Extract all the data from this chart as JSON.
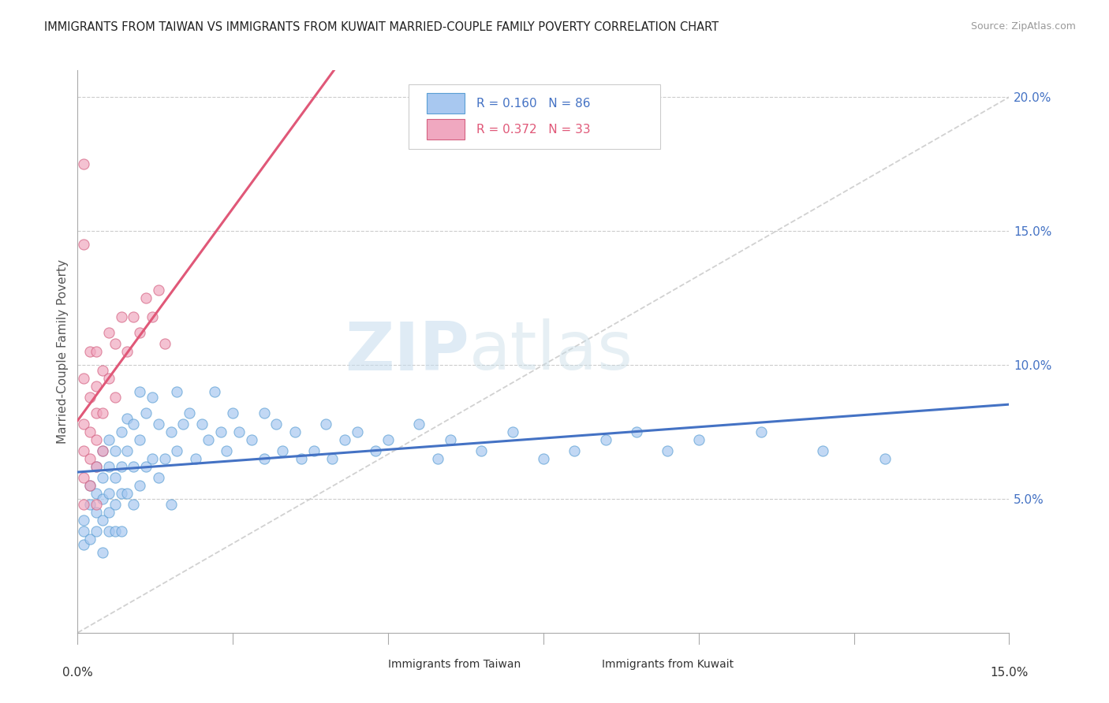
{
  "title": "IMMIGRANTS FROM TAIWAN VS IMMIGRANTS FROM KUWAIT MARRIED-COUPLE FAMILY POVERTY CORRELATION CHART",
  "source": "Source: ZipAtlas.com",
  "ylabel": "Married-Couple Family Poverty",
  "xlim": [
    0.0,
    0.15
  ],
  "ylim": [
    0.0,
    0.21
  ],
  "taiwan_color": "#a8c8f0",
  "taiwan_edge": "#5a9fd4",
  "kuwait_color": "#f0a8c0",
  "kuwait_edge": "#d46080",
  "taiwan_line_color": "#4472c4",
  "kuwait_line_color": "#e05878",
  "diag_line_color": "#cccccc",
  "watermark_zip": "ZIP",
  "watermark_atlas": "atlas",
  "right_yticks": [
    "20.0%",
    "15.0%",
    "10.0%",
    "5.0%"
  ],
  "right_ytick_vals": [
    0.2,
    0.15,
    0.1,
    0.05
  ],
  "taiwan_x": [
    0.001,
    0.001,
    0.001,
    0.002,
    0.002,
    0.002,
    0.003,
    0.003,
    0.003,
    0.003,
    0.004,
    0.004,
    0.004,
    0.004,
    0.004,
    0.005,
    0.005,
    0.005,
    0.005,
    0.005,
    0.006,
    0.006,
    0.006,
    0.006,
    0.007,
    0.007,
    0.007,
    0.007,
    0.008,
    0.008,
    0.008,
    0.009,
    0.009,
    0.009,
    0.01,
    0.01,
    0.01,
    0.011,
    0.011,
    0.012,
    0.012,
    0.013,
    0.013,
    0.014,
    0.015,
    0.015,
    0.016,
    0.016,
    0.017,
    0.018,
    0.019,
    0.02,
    0.021,
    0.022,
    0.023,
    0.024,
    0.025,
    0.026,
    0.028,
    0.03,
    0.03,
    0.032,
    0.033,
    0.035,
    0.036,
    0.038,
    0.04,
    0.041,
    0.043,
    0.045,
    0.048,
    0.05,
    0.055,
    0.058,
    0.06,
    0.065,
    0.07,
    0.075,
    0.08,
    0.085,
    0.09,
    0.095,
    0.1,
    0.11,
    0.12,
    0.13
  ],
  "taiwan_y": [
    0.042,
    0.038,
    0.033,
    0.055,
    0.048,
    0.035,
    0.062,
    0.052,
    0.045,
    0.038,
    0.068,
    0.058,
    0.05,
    0.042,
    0.03,
    0.072,
    0.062,
    0.052,
    0.045,
    0.038,
    0.068,
    0.058,
    0.048,
    0.038,
    0.075,
    0.062,
    0.052,
    0.038,
    0.08,
    0.068,
    0.052,
    0.078,
    0.062,
    0.048,
    0.09,
    0.072,
    0.055,
    0.082,
    0.062,
    0.088,
    0.065,
    0.078,
    0.058,
    0.065,
    0.075,
    0.048,
    0.09,
    0.068,
    0.078,
    0.082,
    0.065,
    0.078,
    0.072,
    0.09,
    0.075,
    0.068,
    0.082,
    0.075,
    0.072,
    0.082,
    0.065,
    0.078,
    0.068,
    0.075,
    0.065,
    0.068,
    0.078,
    0.065,
    0.072,
    0.075,
    0.068,
    0.072,
    0.078,
    0.065,
    0.072,
    0.068,
    0.075,
    0.065,
    0.068,
    0.072,
    0.075,
    0.068,
    0.072,
    0.075,
    0.068,
    0.065
  ],
  "kuwait_x": [
    0.001,
    0.001,
    0.001,
    0.001,
    0.001,
    0.001,
    0.001,
    0.002,
    0.002,
    0.002,
    0.002,
    0.002,
    0.003,
    0.003,
    0.003,
    0.003,
    0.003,
    0.003,
    0.004,
    0.004,
    0.004,
    0.005,
    0.005,
    0.006,
    0.006,
    0.007,
    0.008,
    0.009,
    0.01,
    0.011,
    0.012,
    0.013,
    0.014
  ],
  "kuwait_y": [
    0.175,
    0.145,
    0.095,
    0.078,
    0.068,
    0.058,
    0.048,
    0.105,
    0.088,
    0.075,
    0.065,
    0.055,
    0.105,
    0.092,
    0.082,
    0.072,
    0.062,
    0.048,
    0.098,
    0.082,
    0.068,
    0.112,
    0.095,
    0.108,
    0.088,
    0.118,
    0.105,
    0.118,
    0.112,
    0.125,
    0.118,
    0.128,
    0.108
  ]
}
